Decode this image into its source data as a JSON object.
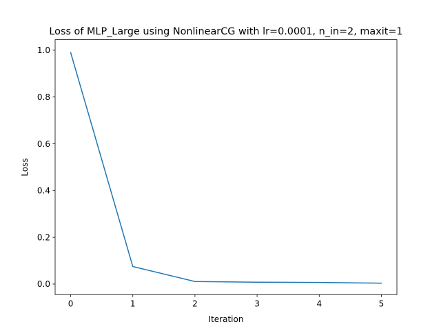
{
  "chart_data": {
    "type": "line",
    "title": "Loss of MLP_Large using NonlinearCG with lr=0.0001, n_in=2, maxit=1",
    "xlabel": "Iteration",
    "ylabel": "Loss",
    "x": [
      0,
      1,
      2,
      3,
      4,
      5
    ],
    "series": [
      {
        "values": [
          0.99,
          0.075,
          0.011,
          0.008,
          0.007,
          0.004
        ],
        "color": "#1f77b4"
      }
    ],
    "xlim": [
      -0.25,
      5.25
    ],
    "ylim": [
      -0.045,
      1.045
    ],
    "xticks": [
      0,
      1,
      2,
      3,
      4,
      5
    ],
    "xtick_labels": [
      "0",
      "1",
      "2",
      "3",
      "4",
      "5"
    ],
    "yticks": [
      0.0,
      0.2,
      0.4,
      0.6,
      0.8,
      1.0
    ],
    "ytick_labels": [
      "0.0",
      "0.2",
      "0.4",
      "0.6",
      "0.8",
      "1.0"
    ],
    "grid": false,
    "legend": "none"
  }
}
